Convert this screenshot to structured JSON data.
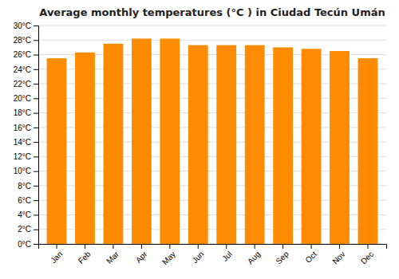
{
  "chart_data": {
    "type": "bar",
    "title": "Average monthly temperatures (°C ) in Ciudad Tecún Umán",
    "categories": [
      "Jan",
      "Feb",
      "Mar",
      "Apr",
      "May",
      "Jun",
      "Jul",
      "Aug",
      "Sep",
      "Oct",
      "Nov",
      "Dec"
    ],
    "values": [
      25.5,
      26.3,
      27.5,
      28.2,
      28.2,
      27.3,
      27.3,
      27.3,
      27.0,
      26.8,
      26.5,
      25.5
    ],
    "color": "#ff8c00",
    "ylim": [
      0,
      30
    ],
    "yticks": [
      {
        "value": 0,
        "label": "0°C"
      },
      {
        "value": 2,
        "label": "2°C"
      },
      {
        "value": 4,
        "label": "4°C"
      },
      {
        "value": 6,
        "label": "6°C"
      },
      {
        "value": 8,
        "label": "8°C"
      },
      {
        "value": 10,
        "label": "10°C"
      },
      {
        "value": 12,
        "label": "12°C"
      },
      {
        "value": 14,
        "label": "14°C"
      },
      {
        "value": 16,
        "label": "16°C"
      },
      {
        "value": 18,
        "label": "18°C"
      },
      {
        "value": 20,
        "label": "20°C"
      },
      {
        "value": 22,
        "label": "22°C"
      },
      {
        "value": 24,
        "label": "24°C"
      },
      {
        "value": 26,
        "label": "26°C"
      },
      {
        "value": 28,
        "label": "28°C"
      },
      {
        "value": 30,
        "label": "30°C"
      }
    ],
    "grid": true
  }
}
